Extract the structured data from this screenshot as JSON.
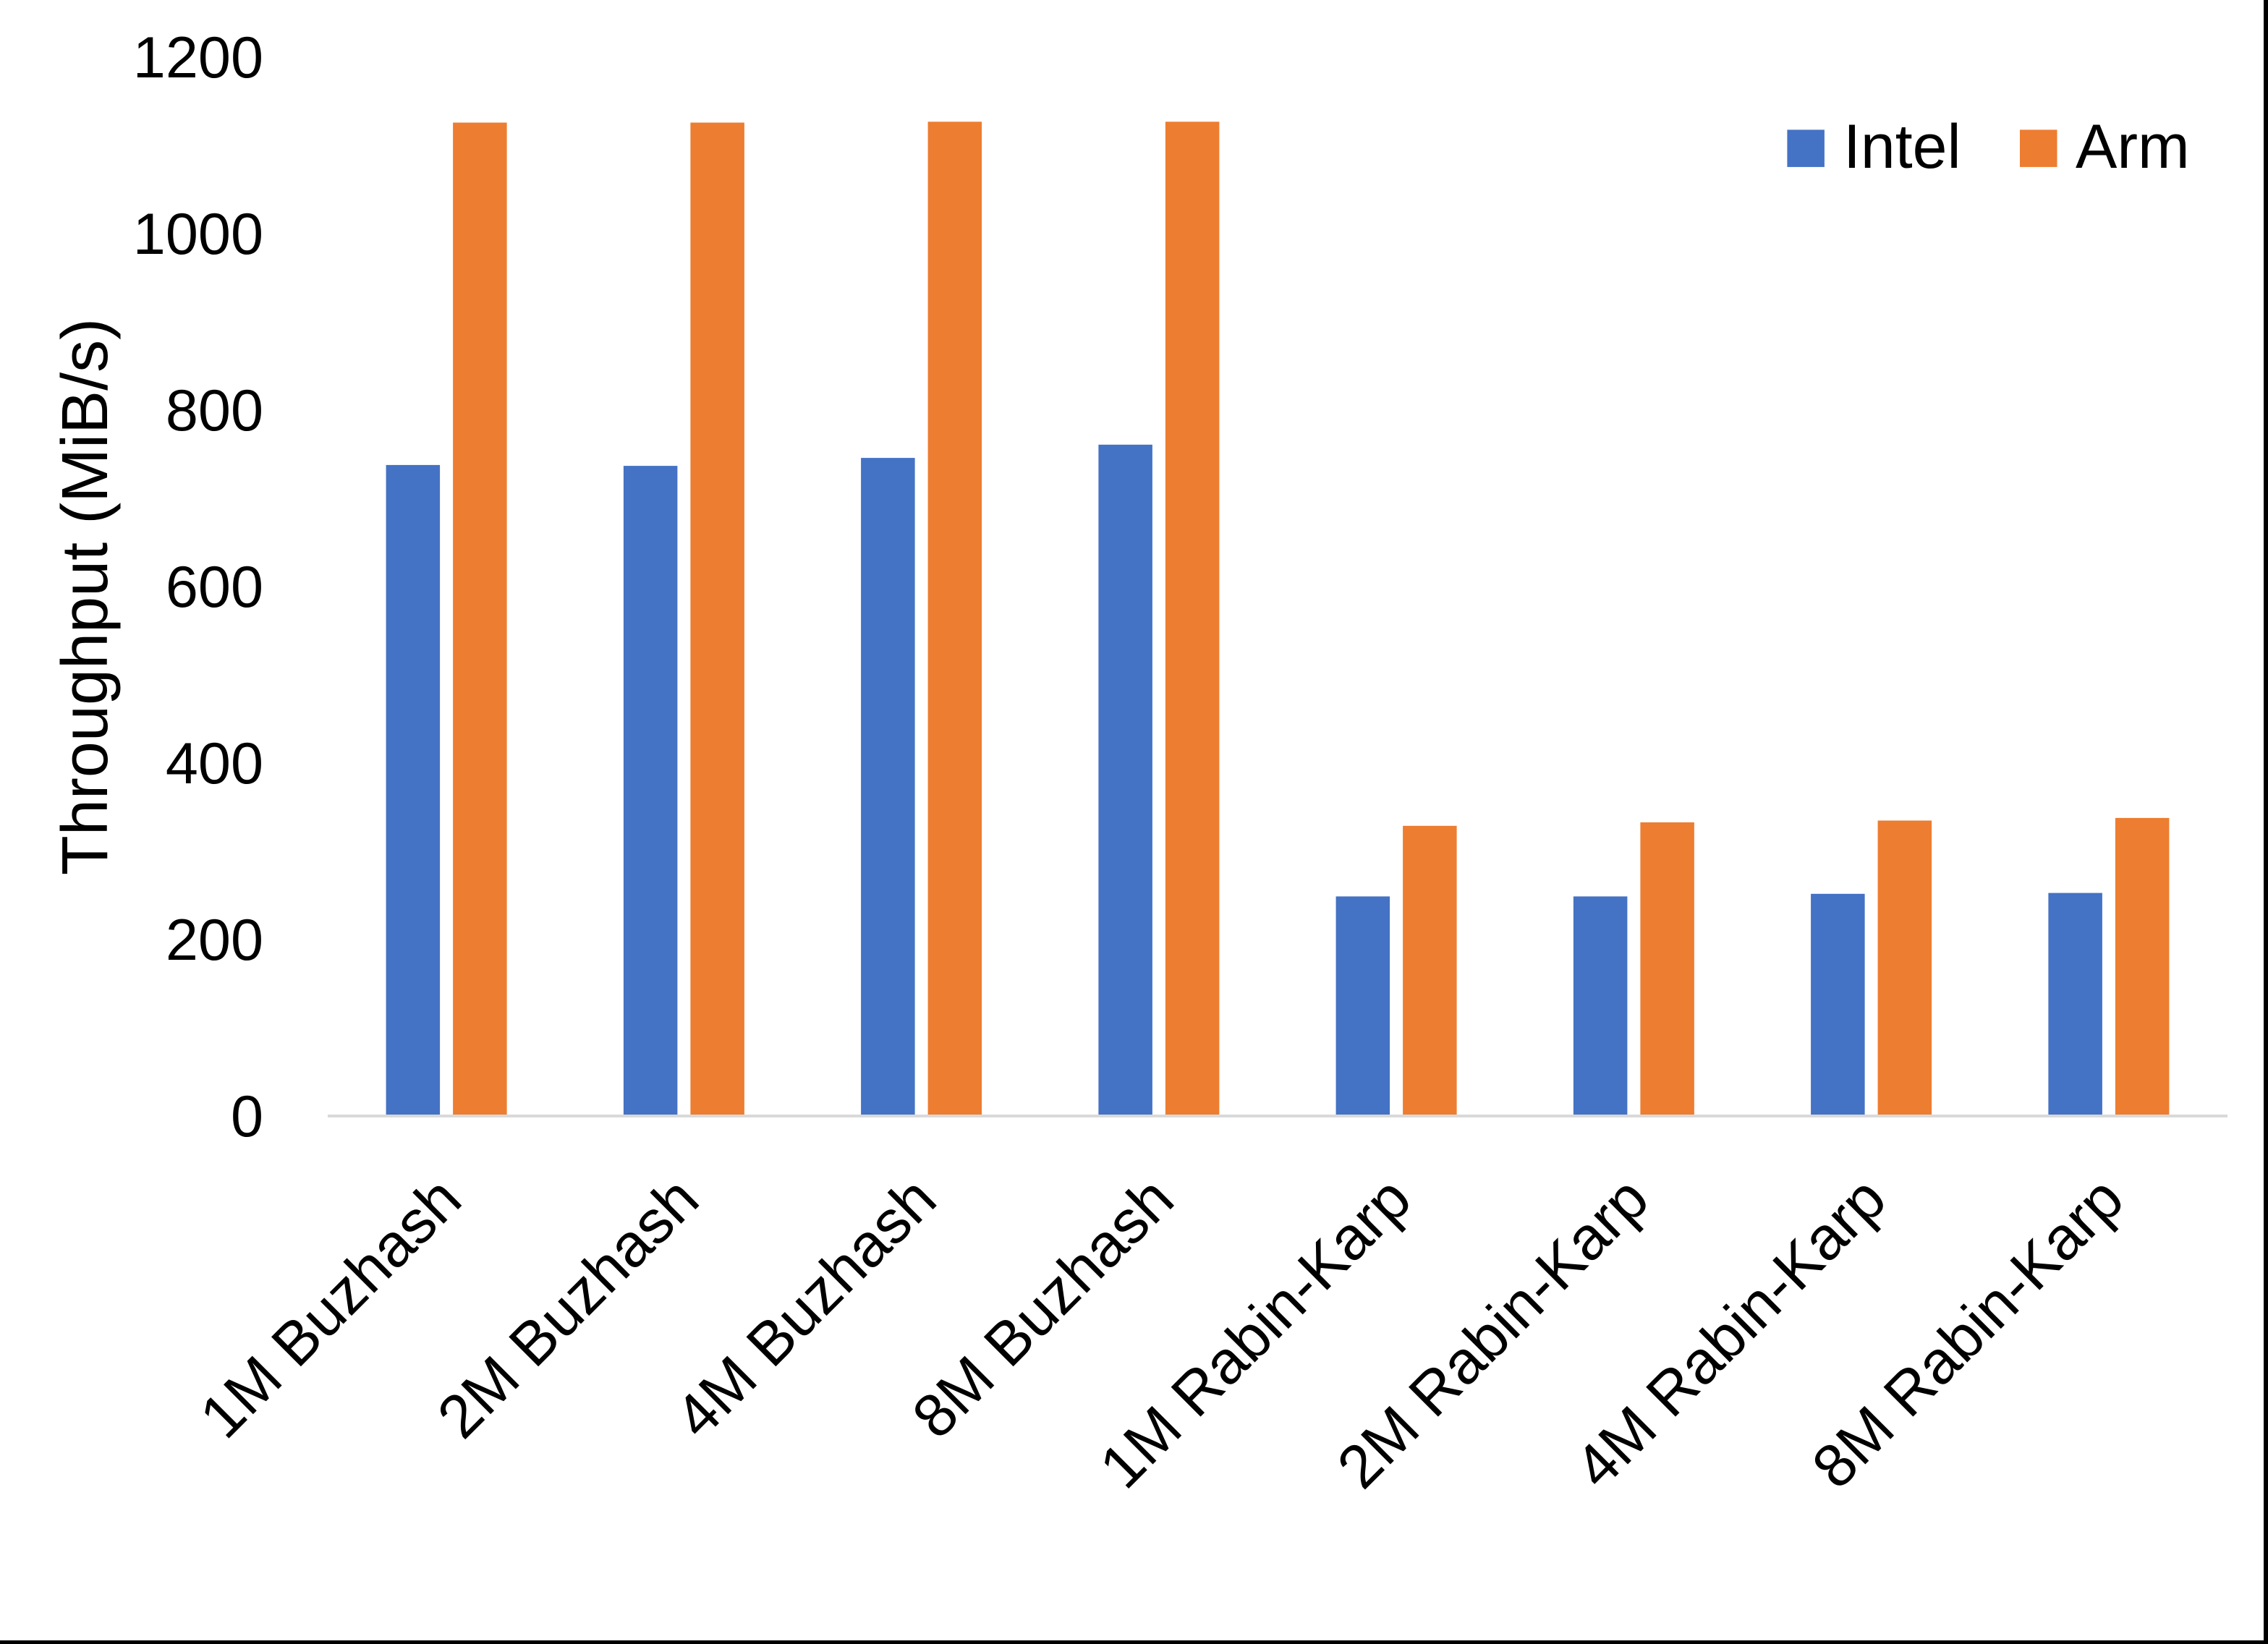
{
  "chart_data": {
    "type": "bar",
    "title": "",
    "categories": [
      "1M Buzhash",
      "2M Buzhash",
      "4M Buzhash",
      "8M Buzhash",
      "1M Rabin-Karp",
      "2M Rabin-Karp",
      "4M Rabin-Karp",
      "8M Rabin-Karp"
    ],
    "series": [
      {
        "name": "Intel",
        "color": "#4472C4",
        "values": [
          737,
          736,
          745,
          760,
          248,
          248,
          251,
          252
        ]
      },
      {
        "name": "Arm",
        "color": "#ED7D31",
        "values": [
          1125,
          1125,
          1126,
          1126,
          328,
          332,
          334,
          337
        ]
      }
    ],
    "xlabel": "",
    "ylabel": "Throughput (MiB/s)",
    "ylim": [
      0,
      1200
    ],
    "yticks": [
      0,
      200,
      400,
      600,
      800,
      1000,
      1200
    ],
    "grid": false,
    "legend_position": "top-right",
    "axis_line_color": "#D9D9D9",
    "text_color": "#000000",
    "background_color": "#FFFFFF",
    "frame_color": "#000000"
  }
}
